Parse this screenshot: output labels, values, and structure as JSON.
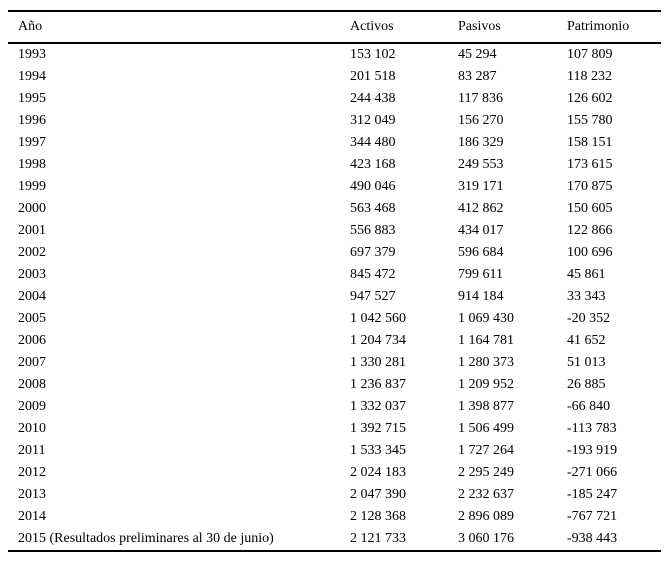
{
  "page": {
    "background": "#ffffff",
    "text_color": "#000000",
    "rule_color": "#000000"
  },
  "table": {
    "columns": [
      "Año",
      "Activos",
      "Pasivos",
      "Patrimonio"
    ],
    "rows": [
      {
        "ano": "1993",
        "activos": "153 102",
        "pasivos": "45 294",
        "patrimonio": "107 809"
      },
      {
        "ano": "1994",
        "activos": "201 518",
        "pasivos": "83 287",
        "patrimonio": "118 232"
      },
      {
        "ano": "1995",
        "activos": "244 438",
        "pasivos": "117 836",
        "patrimonio": "126 602"
      },
      {
        "ano": "1996",
        "activos": "312 049",
        "pasivos": "156 270",
        "patrimonio": "155 780"
      },
      {
        "ano": "1997",
        "activos": "344 480",
        "pasivos": "186 329",
        "patrimonio": "158 151"
      },
      {
        "ano": "1998",
        "activos": "423 168",
        "pasivos": "249 553",
        "patrimonio": "173 615"
      },
      {
        "ano": "1999",
        "activos": "490 046",
        "pasivos": "319 171",
        "patrimonio": "170 875"
      },
      {
        "ano": "2000",
        "activos": "563 468",
        "pasivos": "412 862",
        "patrimonio": "150 605"
      },
      {
        "ano": "2001",
        "activos": "556 883",
        "pasivos": "434 017",
        "patrimonio": "122 866"
      },
      {
        "ano": "2002",
        "activos": "697 379",
        "pasivos": "596 684",
        "patrimonio": "100 696"
      },
      {
        "ano": "2003",
        "activos": "845 472",
        "pasivos": "799 611",
        "patrimonio": "45 861"
      },
      {
        "ano": "2004",
        "activos": "947 527",
        "pasivos": "914 184",
        "patrimonio": "33 343"
      },
      {
        "ano": "2005",
        "activos": "1 042 560",
        "pasivos": "1 069 430",
        "patrimonio": "-20 352"
      },
      {
        "ano": "2006",
        "activos": "1 204 734",
        "pasivos": "1 164 781",
        "patrimonio": "41 652"
      },
      {
        "ano": "2007",
        "activos": "1 330 281",
        "pasivos": "1 280 373",
        "patrimonio": "51 013"
      },
      {
        "ano": "2008",
        "activos": "1 236 837",
        "pasivos": "1 209 952",
        "patrimonio": "26 885"
      },
      {
        "ano": "2009",
        "activos": "1 332 037",
        "pasivos": "1 398 877",
        "patrimonio": "-66 840"
      },
      {
        "ano": "2010",
        "activos": "1 392 715",
        "pasivos": "1 506 499",
        "patrimonio": "-113 783"
      },
      {
        "ano": "2011",
        "activos": "1 533 345",
        "pasivos": "1 727 264",
        "patrimonio": "-193 919"
      },
      {
        "ano": "2012",
        "activos": "2 024 183",
        "pasivos": "2 295 249",
        "patrimonio": "-271 066"
      },
      {
        "ano": "2013",
        "activos": "2 047 390",
        "pasivos": "2 232 637",
        "patrimonio": "-185 247"
      },
      {
        "ano": "2014",
        "activos": "2 128 368",
        "pasivos": "2 896 089",
        "patrimonio": "-767 721"
      },
      {
        "ano": "2015 (Resultados preliminares al 30 de junio)",
        "activos": "2 121 733",
        "pasivos": "3 060 176",
        "patrimonio": "-938 443"
      }
    ]
  },
  "chart_data": {
    "type": "table",
    "title": "",
    "columns": [
      "Año",
      "Activos",
      "Pasivos",
      "Patrimonio"
    ],
    "rows": [
      [
        "1993",
        153102,
        45294,
        107809
      ],
      [
        "1994",
        201518,
        83287,
        118232
      ],
      [
        "1995",
        244438,
        117836,
        126602
      ],
      [
        "1996",
        312049,
        156270,
        155780
      ],
      [
        "1997",
        344480,
        186329,
        158151
      ],
      [
        "1998",
        423168,
        249553,
        173615
      ],
      [
        "1999",
        490046,
        319171,
        170875
      ],
      [
        "2000",
        563468,
        412862,
        150605
      ],
      [
        "2001",
        556883,
        434017,
        122866
      ],
      [
        "2002",
        697379,
        596684,
        100696
      ],
      [
        "2003",
        845472,
        799611,
        45861
      ],
      [
        "2004",
        947527,
        914184,
        33343
      ],
      [
        "2005",
        1042560,
        1069430,
        -20352
      ],
      [
        "2006",
        1204734,
        1164781,
        41652
      ],
      [
        "2007",
        1330281,
        1280373,
        51013
      ],
      [
        "2008",
        1236837,
        1209952,
        26885
      ],
      [
        "2009",
        1332037,
        1398877,
        -66840
      ],
      [
        "2010",
        1392715,
        1506499,
        -113783
      ],
      [
        "2011",
        1533345,
        1727264,
        -193919
      ],
      [
        "2012",
        2024183,
        2295249,
        -271066
      ],
      [
        "2013",
        2047390,
        2232637,
        -185247
      ],
      [
        "2014",
        2128368,
        2896089,
        -767721
      ],
      [
        "2015 (Resultados preliminares al 30 de junio)",
        2121733,
        3060176,
        -938443
      ]
    ]
  }
}
